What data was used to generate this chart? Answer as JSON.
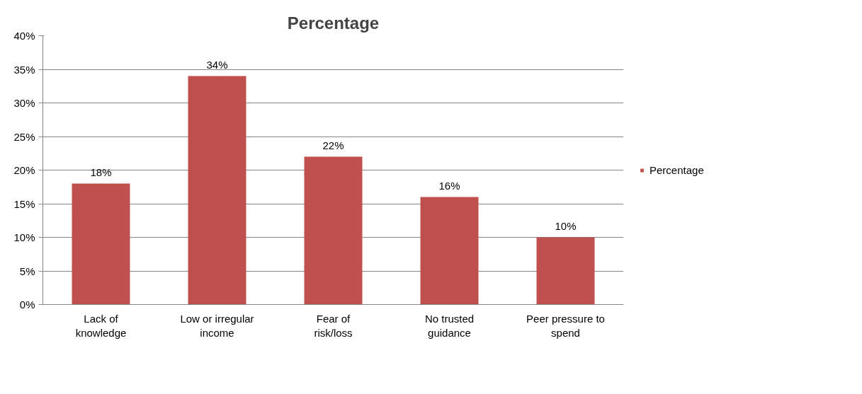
{
  "chart_data": {
    "type": "bar",
    "title": "Percentage",
    "categories": [
      "Lack of knowledge",
      "Low or irregular income",
      "Fear of risk/loss",
      "No trusted guidance",
      "Peer pressure to spend"
    ],
    "series": [
      {
        "name": "Percentage",
        "color": "#c0504d",
        "values": [
          18,
          34,
          22,
          16,
          10
        ],
        "value_labels": [
          "18%",
          "34%",
          "22%",
          "16%",
          "10%"
        ]
      }
    ],
    "ylim": [
      0,
      40
    ],
    "yticks": [
      {
        "value": 0,
        "label": "0%"
      },
      {
        "value": 5,
        "label": "5%"
      },
      {
        "value": 10,
        "label": "10%"
      },
      {
        "value": 15,
        "label": "15%"
      },
      {
        "value": 20,
        "label": "20%"
      },
      {
        "value": 25,
        "label": "25%"
      },
      {
        "value": 30,
        "label": "30%"
      },
      {
        "value": 35,
        "label": "35%"
      },
      {
        "value": 40,
        "label": "40%"
      }
    ],
    "grid": "y",
    "legend": "right"
  }
}
